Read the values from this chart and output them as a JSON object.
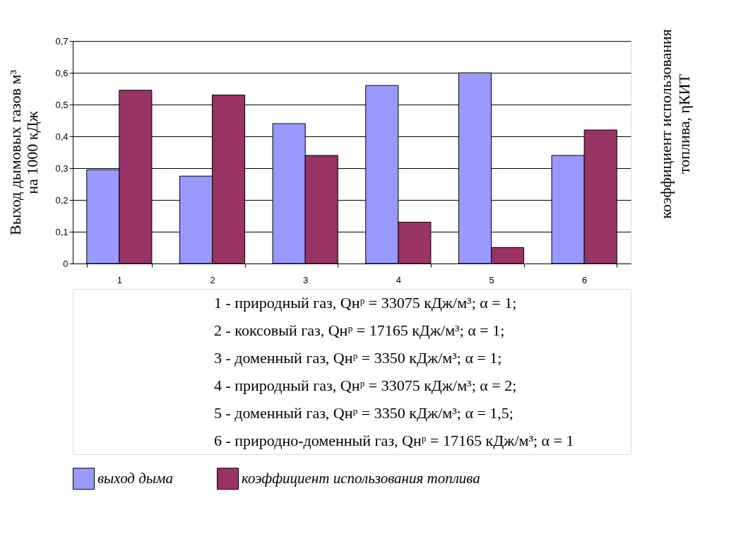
{
  "chart_data": {
    "type": "bar",
    "ylabel": "Выход дымовых газов м³\nна 1000 кДж",
    "y2label": "коэффициент использования\nтоплива, ηКИТ",
    "categories": [
      "1",
      "2",
      "3",
      "4",
      "5",
      "6"
    ],
    "series": [
      {
        "name": "выход дыма",
        "color": "#9999ff",
        "values": [
          0.295,
          0.275,
          0.44,
          0.56,
          0.6,
          0.34
        ]
      },
      {
        "name": "коэффициент использования топлива",
        "color": "#993366",
        "values": [
          0.545,
          0.53,
          0.34,
          0.13,
          0.05,
          0.42
        ]
      }
    ],
    "ylim": [
      0,
      0.7
    ],
    "yticks": [
      0,
      {
        "value": 0.1,
        "label": "0,1"
      },
      {
        "value": 0.2,
        "label": "0,2"
      },
      {
        "value": 0.3,
        "label": "0,3"
      },
      {
        "value": 0.4,
        "label": "0,4"
      },
      {
        "value": 0.5,
        "label": "0,5"
      },
      {
        "value": 0.6,
        "label": "0,6"
      },
      {
        "value": 0.7,
        "label": "0,7"
      }
    ],
    "grid": "y",
    "legend": "bottom",
    "annotations": [
      "1 - природный газ, Qнᵖ = 33075 кДж/м³; α = 1;",
      "2 - коксовый газ, Qнᵖ = 17165 кДж/м³; α = 1;",
      "3 - доменный газ, Qнᵖ = 3350 кДж/м³; α = 1;",
      "4 - природный газ, Qнᵖ = 33075 кДж/м³; α = 2;",
      "5 - доменный газ, Qнᵖ = 3350 кДж/м³; α = 1,5;",
      "6 - природно-доменный газ, Qнᵖ = 17165 кДж/м³; α = 1"
    ]
  }
}
